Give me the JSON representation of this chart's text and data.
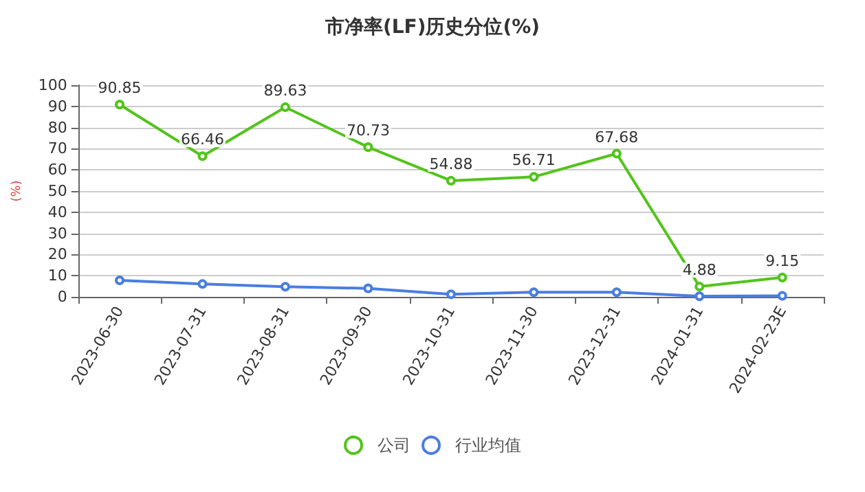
{
  "chart_data": {
    "type": "line",
    "title": "市净率(LF)历史分位(%)",
    "ylabel": "(%)",
    "categories": [
      "2023-06-30",
      "2023-07-31",
      "2023-08-31",
      "2023-09-30",
      "2023-10-31",
      "2023-11-30",
      "2023-12-31",
      "2024-01-31",
      "2024-02-23E"
    ],
    "series": [
      {
        "name": "公司",
        "color": "#52c41a",
        "values": [
          90.85,
          66.46,
          89.63,
          70.73,
          54.88,
          56.71,
          67.68,
          4.88,
          9.15
        ],
        "value_labels": [
          "90.85",
          "66.46",
          "89.63",
          "70.73",
          "54.88",
          "56.71",
          "67.68",
          "4.88",
          "9.15"
        ]
      },
      {
        "name": "行业均值",
        "color": "#4a7ee0",
        "values": [
          7.8,
          6.1,
          4.8,
          4.0,
          1.2,
          2.2,
          2.2,
          0.3,
          0.5
        ]
      }
    ],
    "ylim": [
      0,
      100
    ],
    "yticks": [
      0,
      10,
      20,
      30,
      40,
      50,
      60,
      70,
      80,
      90,
      100
    ],
    "grid": "y",
    "legend": "bottom",
    "marker": "circle"
  }
}
